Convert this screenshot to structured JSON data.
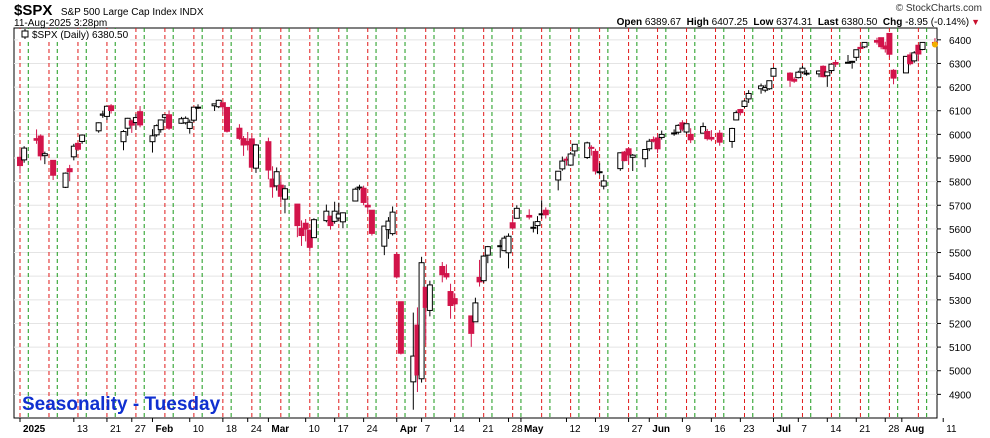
{
  "header": {
    "ticker": "$SPX",
    "name": "S&P 500 Large Cap Index",
    "exchange": "INDX",
    "timestamp": "11-Aug-2025 3:28pm",
    "brand": "© StockCharts.com",
    "open_label": "Open",
    "open": "6389.67",
    "high_label": "High",
    "high": "6407.25",
    "low_label": "Low",
    "low": "6374.31",
    "last_label": "Last",
    "last": "6380.50",
    "chg_label": "Chg",
    "chg": "-8.95 (-0.14%)"
  },
  "legend": {
    "label": "$SPX (Daily) 6380.50"
  },
  "annotation": "Seasonality - Tuesday",
  "colors": {
    "up": "#ffffff",
    "down": "#d2144a",
    "red_line": "#e01a1a",
    "green_line": "#1a9a1a",
    "grid": "#e4e4e4"
  },
  "chart_data": {
    "type": "candlestick",
    "y_ticks": [
      4900,
      5000,
      5100,
      5200,
      5300,
      5400,
      5500,
      5600,
      5700,
      5800,
      5900,
      6000,
      6100,
      6200,
      6300,
      6400
    ],
    "y_range": [
      4800,
      6450
    ],
    "x_labels": [
      {
        "label": "2025",
        "day": 0
      },
      {
        "label": "13",
        "day": 13
      },
      {
        "label": "21",
        "day": 21
      },
      {
        "label": "27",
        "day": 27
      },
      {
        "label": "Feb",
        "day": 32
      },
      {
        "label": "10",
        "day": 41
      },
      {
        "label": "18",
        "day": 49
      },
      {
        "label": "24",
        "day": 55
      },
      {
        "label": "Mar",
        "day": 60
      },
      {
        "label": "10",
        "day": 69
      },
      {
        "label": "17",
        "day": 76
      },
      {
        "label": "24",
        "day": 83
      },
      {
        "label": "Apr",
        "day": 91
      },
      {
        "label": "7",
        "day": 97
      },
      {
        "label": "14",
        "day": 104
      },
      {
        "label": "21",
        "day": 111
      },
      {
        "label": "28",
        "day": 118
      },
      {
        "label": "May",
        "day": 121
      },
      {
        "label": "12",
        "day": 132
      },
      {
        "label": "19",
        "day": 139
      },
      {
        "label": "27",
        "day": 147
      },
      {
        "label": "Jun",
        "day": 152
      },
      {
        "label": "9",
        "day": 160
      },
      {
        "label": "16",
        "day": 167
      },
      {
        "label": "23",
        "day": 174
      },
      {
        "label": "Jul",
        "day": 182
      },
      {
        "label": "7",
        "day": 188
      },
      {
        "label": "14",
        "day": 195
      },
      {
        "label": "21",
        "day": 202
      },
      {
        "label": "28",
        "day": 209
      },
      {
        "label": "Aug",
        "day": 213
      },
      {
        "label": "11",
        "day": 223
      }
    ],
    "bars": [
      [
        "2025-01-02",
        5903,
        5935,
        5835,
        5868
      ],
      [
        "2025-01-03",
        5892,
        5950,
        5880,
        5942
      ],
      [
        "2025-01-06",
        5982,
        6021,
        5960,
        5975
      ],
      [
        "2025-01-07",
        5993,
        6000,
        5890,
        5909
      ],
      [
        "2025-01-08",
        5910,
        5927,
        5874,
        5918
      ],
      [
        "2025-01-10",
        5890,
        5890,
        5807,
        5827
      ],
      [
        "2025-01-13",
        5776,
        5839,
        5773,
        5836
      ],
      [
        "2025-01-14",
        5855,
        5871,
        5802,
        5842
      ],
      [
        "2025-01-15",
        5905,
        5960,
        5890,
        5950
      ],
      [
        "2025-01-16",
        5962,
        5965,
        5935,
        5937
      ],
      [
        "2025-01-17",
        5970,
        6000,
        5960,
        5997
      ],
      [
        "2025-01-21",
        6015,
        6051,
        6007,
        6049
      ],
      [
        "2025-01-22",
        6081,
        6100,
        6070,
        6086
      ],
      [
        "2025-01-23",
        6076,
        6119,
        6061,
        6119
      ],
      [
        "2025-01-24",
        6121,
        6128,
        6088,
        6101
      ],
      [
        "2025-01-27",
        5969,
        6018,
        5933,
        6012
      ],
      [
        "2025-01-28",
        6026,
        6070,
        5994,
        6068
      ],
      [
        "2025-01-29",
        6057,
        6063,
        6006,
        6039
      ],
      [
        "2025-01-30",
        6050,
        6087,
        6019,
        6071
      ],
      [
        "2025-01-31",
        6096,
        6120,
        6030,
        6040
      ],
      [
        "2025-02-03",
        5969,
        6022,
        5923,
        5994
      ],
      [
        "2025-02-04",
        5998,
        6042,
        5990,
        6037
      ],
      [
        "2025-02-05",
        6020,
        6062,
        6007,
        6061
      ],
      [
        "2025-02-06",
        6072,
        6084,
        6049,
        6083
      ],
      [
        "2025-02-07",
        6083,
        6101,
        6019,
        6026
      ],
      [
        "2025-02-10",
        6047,
        6074,
        6045,
        6066
      ],
      [
        "2025-02-11",
        6049,
        6076,
        6042,
        6068
      ],
      [
        "2025-02-12",
        6025,
        6063,
        6003,
        6051
      ],
      [
        "2025-02-13",
        6060,
        6116,
        6052,
        6115
      ],
      [
        "2025-02-14",
        6115,
        6127,
        6107,
        6115
      ],
      [
        "2025-02-18",
        6121,
        6129,
        6099,
        6129
      ],
      [
        "2025-02-19",
        6117,
        6147,
        6111,
        6144
      ],
      [
        "2025-02-20",
        6134,
        6134,
        6084,
        6117
      ],
      [
        "2025-02-21",
        6114,
        6115,
        6008,
        6013
      ],
      [
        "2025-02-24",
        6026,
        6043,
        5977,
        5983
      ],
      [
        "2025-02-25",
        5982,
        5993,
        5909,
        5955
      ],
      [
        "2025-02-26",
        5970,
        6010,
        5932,
        5956
      ],
      [
        "2025-02-27",
        5981,
        5994,
        5858,
        5861
      ],
      [
        "2025-02-28",
        5857,
        5959,
        5837,
        5955
      ],
      [
        "2025-03-03",
        5969,
        5986,
        5810,
        5849
      ],
      [
        "2025-03-04",
        5811,
        5865,
        5732,
        5778
      ],
      [
        "2025-03-05",
        5782,
        5860,
        5762,
        5842
      ],
      [
        "2025-03-06",
        5785,
        5812,
        5711,
        5738
      ],
      [
        "2025-03-07",
        5726,
        5785,
        5666,
        5770
      ],
      [
        "2025-03-10",
        5705,
        5705,
        5565,
        5614
      ],
      [
        "2025-03-11",
        5603,
        5636,
        5528,
        5572
      ],
      [
        "2025-03-12",
        5624,
        5642,
        5547,
        5599
      ],
      [
        "2025-03-13",
        5594,
        5597,
        5504,
        5522
      ],
      [
        "2025-03-14",
        5563,
        5645,
        5563,
        5639
      ],
      [
        "2025-03-17",
        5635,
        5703,
        5628,
        5675
      ],
      [
        "2025-03-18",
        5654,
        5654,
        5597,
        5614
      ],
      [
        "2025-03-19",
        5632,
        5715,
        5622,
        5675
      ],
      [
        "2025-03-20",
        5646,
        5711,
        5632,
        5663
      ],
      [
        "2025-03-21",
        5630,
        5670,
        5603,
        5668
      ],
      [
        "2025-03-24",
        5718,
        5775,
        5718,
        5768
      ],
      [
        "2025-03-25",
        5775,
        5787,
        5764,
        5777
      ],
      [
        "2025-03-26",
        5772,
        5783,
        5700,
        5712
      ],
      [
        "2025-03-27",
        5700,
        5732,
        5671,
        5693
      ],
      [
        "2025-03-28",
        5679,
        5680,
        5572,
        5581
      ],
      [
        "2025-03-31",
        5527,
        5612,
        5489,
        5612
      ],
      [
        "2025-04-01",
        5597,
        5650,
        5558,
        5633
      ],
      [
        "2025-04-02",
        5580,
        5695,
        5572,
        5671
      ],
      [
        "2025-04-03",
        5492,
        5501,
        5390,
        5397
      ],
      [
        "2025-04-04",
        5292,
        5292,
        5069,
        5074
      ],
      [
        "2025-04-07",
        4953,
        5246,
        4835,
        5062
      ],
      [
        "2025-04-08",
        5193,
        5268,
        4910,
        4982
      ],
      [
        "2025-04-09",
        4966,
        5482,
        4950,
        5457
      ],
      [
        "2025-04-10",
        5353,
        5353,
        5115,
        5268
      ],
      [
        "2025-04-11",
        5255,
        5381,
        5230,
        5363
      ],
      [
        "2025-04-14",
        5441,
        5460,
        5374,
        5406
      ],
      [
        "2025-04-15",
        5411,
        5450,
        5386,
        5397
      ],
      [
        "2025-04-16",
        5335,
        5368,
        5220,
        5276
      ],
      [
        "2025-04-17",
        5305,
        5328,
        5255,
        5283
      ],
      [
        "2025-04-21",
        5232,
        5232,
        5101,
        5158
      ],
      [
        "2025-04-22",
        5207,
        5309,
        5207,
        5287
      ],
      [
        "2025-04-23",
        5395,
        5469,
        5356,
        5376
      ],
      [
        "2025-04-24",
        5381,
        5489,
        5372,
        5485
      ],
      [
        "2025-04-25",
        5489,
        5528,
        5455,
        5525
      ],
      [
        "2025-04-28",
        5529,
        5554,
        5478,
        5529
      ],
      [
        "2025-04-29",
        5508,
        5571,
        5505,
        5561
      ],
      [
        "2025-04-30",
        5499,
        5581,
        5433,
        5569
      ],
      [
        "2025-05-01",
        5626,
        5658,
        5597,
        5604
      ],
      [
        "2025-05-02",
        5645,
        5700,
        5645,
        5687
      ],
      [
        "2025-05-05",
        5657,
        5683,
        5640,
        5650
      ],
      [
        "2025-05-06",
        5606,
        5632,
        5585,
        5607
      ],
      [
        "2025-05-07",
        5614,
        5654,
        5578,
        5631
      ],
      [
        "2025-05-08",
        5663,
        5721,
        5643,
        5664
      ],
      [
        "2025-05-09",
        5679,
        5691,
        5644,
        5660
      ],
      [
        "2025-05-12",
        5807,
        5845,
        5763,
        5844
      ],
      [
        "2025-05-13",
        5854,
        5906,
        5846,
        5887
      ],
      [
        "2025-05-14",
        5895,
        5906,
        5868,
        5892
      ],
      [
        "2025-05-15",
        5870,
        5925,
        5867,
        5917
      ],
      [
        "2025-05-16",
        5930,
        5958,
        5907,
        5958
      ],
      [
        "2025-05-19",
        5902,
        5969,
        5896,
        5964
      ],
      [
        "2025-05-20",
        5945,
        5954,
        5910,
        5941
      ],
      [
        "2025-05-21",
        5928,
        5939,
        5830,
        5845
      ],
      [
        "2025-05-22",
        5841,
        5878,
        5829,
        5842
      ],
      [
        "2025-05-23",
        5781,
        5829,
        5767,
        5803
      ],
      [
        "2025-05-27",
        5855,
        5924,
        5846,
        5922
      ],
      [
        "2025-05-28",
        5925,
        5930,
        5886,
        5889
      ],
      [
        "2025-05-29",
        5939,
        5944,
        5874,
        5913
      ],
      [
        "2025-05-30",
        5903,
        5917,
        5845,
        5912
      ],
      [
        "2025-06-02",
        5897,
        5937,
        5861,
        5936
      ],
      [
        "2025-06-03",
        5939,
        5981,
        5929,
        5971
      ],
      [
        "2025-06-04",
        5978,
        5991,
        5966,
        5971
      ],
      [
        "2025-06-05",
        5985,
        5999,
        5921,
        5939
      ],
      [
        "2025-06-06",
        5987,
        6016,
        5978,
        6000
      ],
      [
        "2025-06-09",
        6004,
        6021,
        5994,
        6006
      ],
      [
        "2025-06-10",
        6009,
        6043,
        6000,
        6038
      ],
      [
        "2025-06-11",
        6049,
        6060,
        6013,
        6022
      ],
      [
        "2025-06-12",
        6010,
        6045,
        6003,
        6045
      ],
      [
        "2025-06-13",
        6000,
        6026,
        5963,
        5977
      ],
      [
        "2025-06-16",
        6005,
        6050,
        6004,
        6033
      ],
      [
        "2025-06-17",
        6012,
        6023,
        5974,
        5982
      ],
      [
        "2025-06-18",
        5987,
        6018,
        5971,
        5980
      ],
      [
        "2025-06-20",
        6005,
        6018,
        5952,
        5967
      ],
      [
        "2025-06-23",
        5970,
        6028,
        5943,
        6025
      ],
      [
        "2025-06-24",
        6061,
        6101,
        6060,
        6092
      ],
      [
        "2025-06-25",
        6105,
        6108,
        6080,
        6092
      ],
      [
        "2025-06-26",
        6118,
        6146,
        6112,
        6141
      ],
      [
        "2025-06-27",
        6150,
        6187,
        6133,
        6173
      ],
      [
        "2025-06-30",
        6193,
        6215,
        6172,
        6205
      ],
      [
        "2025-07-01",
        6187,
        6210,
        6178,
        6198
      ],
      [
        "2025-07-02",
        6193,
        6227,
        6188,
        6227
      ],
      [
        "2025-07-03",
        6246,
        6284,
        6244,
        6279
      ],
      [
        "2025-07-07",
        6259,
        6263,
        6201,
        6229
      ],
      [
        "2025-07-08",
        6233,
        6242,
        6218,
        6225
      ],
      [
        "2025-07-09",
        6240,
        6269,
        6237,
        6263
      ],
      [
        "2025-07-10",
        6264,
        6290,
        6258,
        6280
      ],
      [
        "2025-07-11",
        6255,
        6272,
        6248,
        6259
      ],
      [
        "2025-07-14",
        6256,
        6271,
        6242,
        6268
      ],
      [
        "2025-07-15",
        6288,
        6292,
        6241,
        6244
      ],
      [
        "2025-07-16",
        6248,
        6266,
        6201,
        6264
      ],
      [
        "2025-07-17",
        6270,
        6299,
        6260,
        6297
      ],
      [
        "2025-07-18",
        6304,
        6315,
        6285,
        6297
      ],
      [
        "2025-07-21",
        6304,
        6336,
        6303,
        6305
      ],
      [
        "2025-07-22",
        6306,
        6311,
        6278,
        6309
      ],
      [
        "2025-07-23",
        6326,
        6358,
        6311,
        6358
      ],
      [
        "2025-07-24",
        6368,
        6381,
        6360,
        6363
      ],
      [
        "2025-07-25",
        6370,
        6390,
        6365,
        6389
      ],
      [
        "2025-07-28",
        6397,
        6409,
        6380,
        6390
      ],
      [
        "2025-07-29",
        6409,
        6409,
        6360,
        6371
      ],
      [
        "2025-07-30",
        6374,
        6392,
        6346,
        6362
      ],
      [
        "2025-07-31",
        6427,
        6427,
        6327,
        6339
      ],
      [
        "2025-08-01",
        6271,
        6276,
        6212,
        6238
      ],
      [
        "2025-08-04",
        6260,
        6330,
        6259,
        6330
      ],
      [
        "2025-08-05",
        6336,
        6347,
        6292,
        6299
      ],
      [
        "2025-08-06",
        6311,
        6352,
        6303,
        6345
      ],
      [
        "2025-08-07",
        6377,
        6379,
        6309,
        6340
      ],
      [
        "2025-08-08",
        6359,
        6389,
        6356,
        6389
      ],
      [
        "2025-08-11",
        6389,
        6407,
        6374,
        6380
      ]
    ],
    "vlines_red_days": [
      0,
      7,
      14,
      21,
      28,
      35,
      42,
      49,
      56,
      63,
      70,
      77,
      84,
      91,
      98,
      105,
      112,
      119,
      126,
      133,
      140,
      147,
      154,
      161,
      168,
      175,
      182,
      189,
      196,
      203,
      210,
      217,
      224
    ],
    "vlines_green_days": [
      2,
      9,
      16,
      23,
      30,
      37,
      44,
      51,
      58,
      65,
      72,
      79,
      86,
      93,
      100,
      107,
      114,
      121,
      128,
      135,
      142,
      149,
      156,
      163,
      170,
      177,
      184,
      191,
      198,
      205,
      212,
      219
    ],
    "grid": true
  }
}
